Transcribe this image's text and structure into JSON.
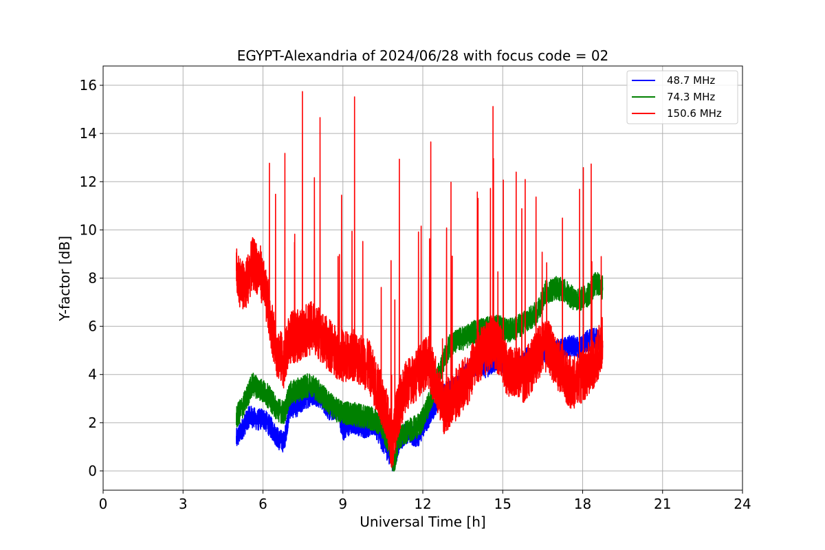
{
  "chart_data": {
    "type": "line",
    "title": "EGYPT-Alexandria of 2024/06/28 with focus code = 02",
    "xlabel": "Universal Time [h]",
    "ylabel": "Y-factor [dB]",
    "xlim": [
      0,
      24
    ],
    "ylim": [
      -0.8,
      16.8
    ],
    "xticks": [
      0,
      3,
      6,
      9,
      12,
      15,
      18,
      21,
      24
    ],
    "yticks": [
      0,
      2,
      4,
      6,
      8,
      10,
      12,
      14,
      16
    ],
    "xtick_labels": [
      "0",
      "3",
      "6",
      "9",
      "12",
      "15",
      "18",
      "21",
      "24"
    ],
    "ytick_labels": [
      "0",
      "2",
      "4",
      "6",
      "8",
      "10",
      "12",
      "14",
      "16"
    ],
    "grid": true,
    "legend_position": "top-right",
    "series": [
      {
        "name": " 48.7 MHz",
        "color": "#0000ff",
        "x": [
          5.0,
          5.5,
          5.8,
          6.0,
          6.3,
          6.6,
          6.8,
          7.0,
          7.3,
          7.6,
          7.9,
          8.2,
          8.5,
          8.8,
          9.0,
          9.4,
          9.8,
          10.2,
          10.5,
          10.8,
          10.9,
          11.1,
          11.4,
          11.8,
          12.2,
          12.6,
          13.0,
          13.3,
          13.7,
          14.0,
          14.4,
          14.8,
          15.2,
          15.6,
          15.9,
          16.2,
          16.6,
          17.0,
          17.3,
          17.6,
          17.9,
          18.2,
          18.5,
          18.75
        ],
        "y": [
          1.3,
          2.3,
          2.1,
          2.2,
          1.8,
          1.3,
          1.2,
          2.6,
          2.7,
          3.0,
          3.2,
          3.0,
          2.5,
          2.6,
          1.7,
          2.0,
          1.8,
          1.9,
          1.2,
          0.6,
          0.3,
          1.2,
          1.6,
          1.4,
          2.2,
          3.0,
          3.3,
          3.5,
          4.2,
          4.4,
          4.3,
          4.6,
          4.3,
          4.2,
          4.7,
          4.8,
          4.9,
          5.0,
          5.1,
          5.2,
          5.1,
          5.4,
          5.5,
          5.2
        ]
      },
      {
        "name": " 74.3 MHz",
        "color": "#008000",
        "x": [
          5.0,
          5.3,
          5.6,
          5.9,
          6.2,
          6.5,
          6.8,
          7.0,
          7.4,
          7.8,
          8.1,
          8.4,
          8.8,
          9.2,
          9.6,
          10.0,
          10.4,
          10.8,
          10.9,
          11.1,
          11.5,
          11.9,
          12.2,
          12.6,
          13.0,
          13.3,
          13.7,
          14.0,
          14.4,
          14.8,
          15.2,
          15.6,
          16.0,
          16.3,
          16.6,
          17.0,
          17.3,
          17.6,
          17.9,
          18.2,
          18.5,
          18.75
        ],
        "y": [
          2.2,
          2.8,
          3.6,
          3.4,
          3.1,
          2.6,
          2.4,
          3.2,
          3.4,
          3.6,
          3.3,
          2.9,
          2.5,
          2.4,
          2.3,
          2.2,
          2.0,
          1.0,
          0.2,
          1.4,
          1.7,
          1.9,
          2.7,
          4.0,
          5.2,
          5.4,
          5.6,
          5.8,
          5.9,
          6.0,
          5.8,
          6.0,
          6.3,
          6.6,
          7.4,
          7.6,
          7.5,
          7.2,
          7.1,
          7.3,
          7.8,
          7.6
        ]
      },
      {
        "name": "150.6 MHz",
        "color": "#ff0000",
        "x": [
          5.0,
          5.3,
          5.6,
          5.9,
          6.2,
          6.5,
          6.8,
          7.0,
          7.3,
          7.6,
          7.9,
          8.2,
          8.5,
          8.8,
          9.1,
          9.4,
          9.7,
          10.0,
          10.3,
          10.6,
          10.85,
          11.0,
          11.3,
          11.6,
          11.9,
          12.2,
          12.5,
          12.8,
          13.1,
          13.4,
          13.7,
          14.0,
          14.3,
          14.6,
          14.9,
          15.2,
          15.5,
          15.8,
          16.1,
          16.4,
          16.7,
          17.0,
          17.3,
          17.6,
          17.9,
          18.2,
          18.5,
          18.75
        ],
        "y": [
          8.2,
          7.5,
          8.6,
          8.3,
          6.8,
          5.0,
          4.5,
          5.5,
          5.6,
          5.8,
          6.0,
          5.5,
          5.2,
          4.9,
          4.7,
          4.8,
          4.6,
          4.3,
          3.4,
          2.6,
          1.0,
          2.2,
          3.4,
          3.8,
          4.2,
          4.6,
          3.6,
          2.6,
          3.0,
          3.4,
          3.8,
          4.6,
          5.0,
          5.4,
          5.0,
          4.0,
          4.2,
          3.9,
          4.4,
          5.0,
          5.2,
          4.5,
          4.0,
          3.6,
          3.8,
          4.2,
          4.6,
          5.4
        ]
      }
    ]
  }
}
